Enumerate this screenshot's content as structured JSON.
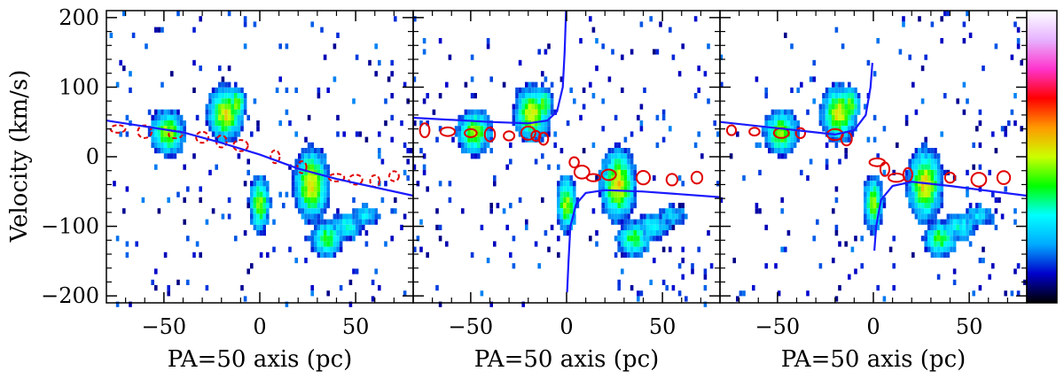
{
  "chart_data": {
    "type": "heatmap",
    "description_free": true,
    "ylabel": "Velocity (km/s)",
    "ylim": [
      -210,
      210
    ],
    "yticks": [
      200,
      100,
      0,
      -100,
      -200
    ],
    "ytick_labels": [
      "200",
      "100",
      "0",
      "−100",
      "−200"
    ],
    "colorbar": {
      "stops": [
        "#ffffff",
        "#e6b3ff",
        "#ff33cc",
        "#ff0000",
        "#ff9900",
        "#ccff00",
        "#00ff00",
        "#00ffff",
        "#00aaff",
        "#0000cc",
        "#000000"
      ]
    },
    "panels": [
      {
        "xlabel": "PA=50 axis (pc)",
        "xlim": [
          -80,
          80
        ],
        "xticks": [
          -50,
          0,
          50
        ],
        "xtick_labels": [
          "−50",
          "0",
          "50"
        ],
        "model_curve": {
          "color": "#1a1aff",
          "segments": [
            [
              [
                -80,
                52
              ],
              [
                -40,
                35
              ],
              [
                -20,
                20
              ],
              [
                0,
                3
              ],
              [
                20,
                -17
              ],
              [
                40,
                -32
              ],
              [
                80,
                -56
              ]
            ]
          ]
        },
        "contours": {
          "color": "#e00000"
        }
      },
      {
        "xlabel": "PA=50 axis (pc)",
        "xlim": [
          -80,
          80
        ],
        "xticks": [
          -50,
          0,
          50
        ],
        "xtick_labels": [
          "−50",
          "0",
          "50"
        ],
        "model_curve": {
          "color": "#1a1aff",
          "segments": [
            [
              [
                -80,
                56
              ],
              [
                -40,
                50
              ],
              [
                -20,
                48
              ],
              [
                -10,
                52
              ],
              [
                -5,
                65
              ],
              [
                -2,
                100
              ],
              [
                -1,
                150
              ],
              [
                -0.3,
                210
              ]
            ],
            [
              [
                0.3,
                -195
              ],
              [
                1,
                -150
              ],
              [
                2,
                -100
              ],
              [
                5,
                -68
              ],
              [
                10,
                -52
              ],
              [
                20,
                -48
              ],
              [
                40,
                -50
              ],
              [
                80,
                -58
              ]
            ]
          ]
        },
        "contours": {
          "color": "#e00000"
        }
      },
      {
        "xlabel": "PA=50 axis (pc)",
        "xlim": [
          -80,
          80
        ],
        "xticks": [
          -50,
          0,
          50
        ],
        "xtick_labels": [
          "−50",
          "0",
          "50"
        ],
        "model_curve": {
          "color": "#1a1aff",
          "segments": [
            [
              [
                -80,
                50
              ],
              [
                -40,
                38
              ],
              [
                -20,
                32
              ],
              [
                -10,
                38
              ],
              [
                -4,
                60
              ],
              [
                -1.5,
                100
              ],
              [
                -0.5,
                135
              ]
            ],
            [
              [
                0.5,
                -135
              ],
              [
                1.5,
                -100
              ],
              [
                4,
                -62
              ],
              [
                10,
                -42
              ],
              [
                20,
                -36
              ],
              [
                40,
                -42
              ],
              [
                80,
                -56
              ]
            ]
          ]
        },
        "contours": {
          "color": "#e00000"
        }
      }
    ]
  }
}
